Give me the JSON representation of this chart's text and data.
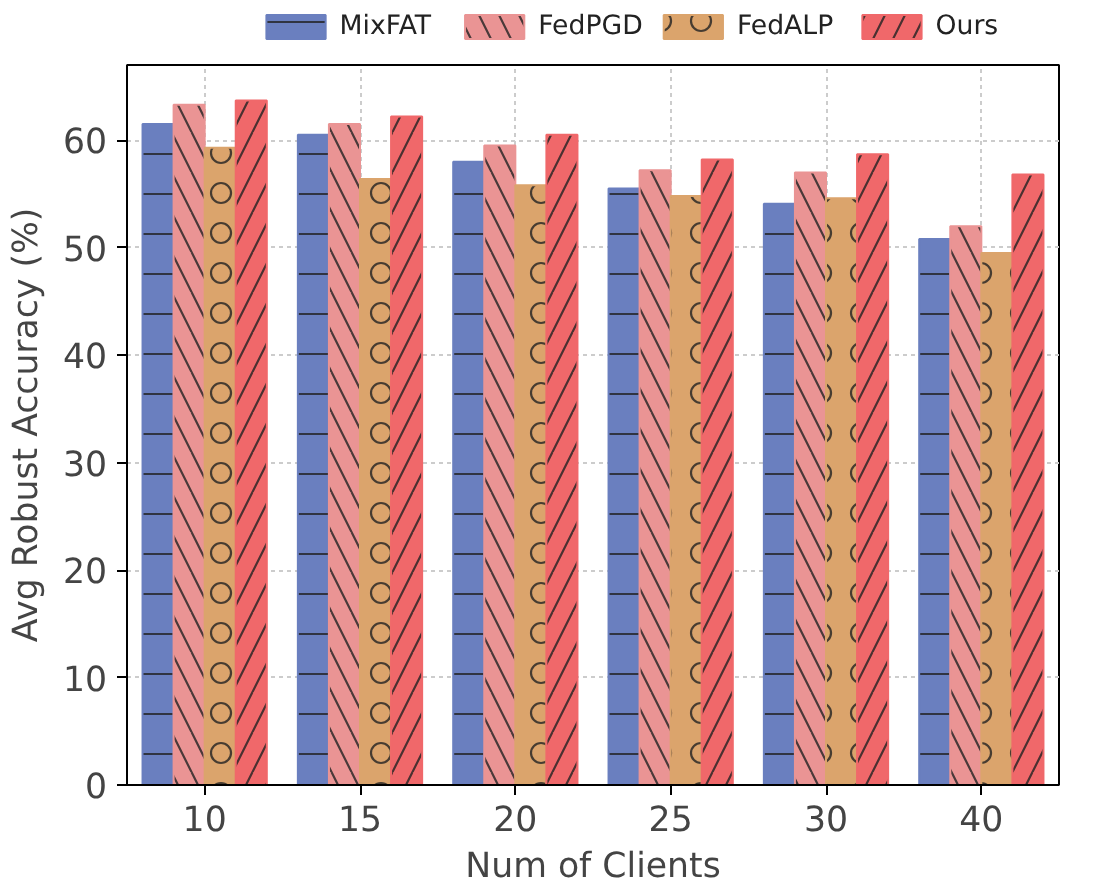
{
  "chart_data": {
    "type": "bar",
    "xlabel": "Num of Clients",
    "ylabel": "Avg Robust Accuracy (%)",
    "categories": [
      "10",
      "15",
      "20",
      "25",
      "30",
      "40"
    ],
    "series": [
      {
        "name": "MixFAT",
        "color": "#6a7fbf",
        "values": [
          61.5,
          60.5,
          58.0,
          55.5,
          54.1,
          50.8
        ]
      },
      {
        "name": "FedPGD",
        "color": "#ea9494",
        "values": [
          63.3,
          61.5,
          59.5,
          57.2,
          57.0,
          52.0
        ]
      },
      {
        "name": "FedALP",
        "color": "#dba46c",
        "values": [
          59.3,
          56.4,
          55.8,
          54.8,
          54.6,
          49.5
        ]
      },
      {
        "name": "Ours",
        "color": "#f0686a",
        "values": [
          63.7,
          62.2,
          60.5,
          58.2,
          58.7,
          56.8
        ]
      }
    ],
    "ylim": [
      0,
      67
    ],
    "yticks": [
      0,
      10,
      20,
      30,
      40,
      50,
      60
    ],
    "grid": true,
    "legend": "top"
  }
}
